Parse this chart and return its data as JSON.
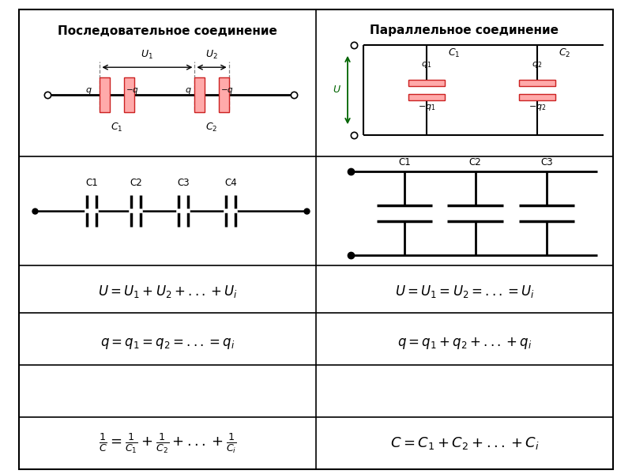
{
  "title_left": "Последовательное соединение",
  "title_right": "Параллельное соединение",
  "bg_color": "#ffffff",
  "border_color": "#000000",
  "line_color": "#000000",
  "capacitor_color": "#cc2222",
  "formula_color": "#000000",
  "formula_seq_U": "$U = U_1 + U_2 + ... + U_i$",
  "formula_seq_q": "$q = q_1 = q_2 = ... = q_i$",
  "formula_seq_C": "$\\frac{1}{C} = \\frac{1}{C_1} + \\frac{1}{C_2} + ... + \\frac{1}{C_i}$",
  "formula_par_U": "$U = U_1 = U_2 = ... = U_i$",
  "formula_par_q": "$q = q_1 + q_2 + ... + q_i$",
  "formula_par_C": "$C = C_1 + C_2 + ... + C_i$"
}
